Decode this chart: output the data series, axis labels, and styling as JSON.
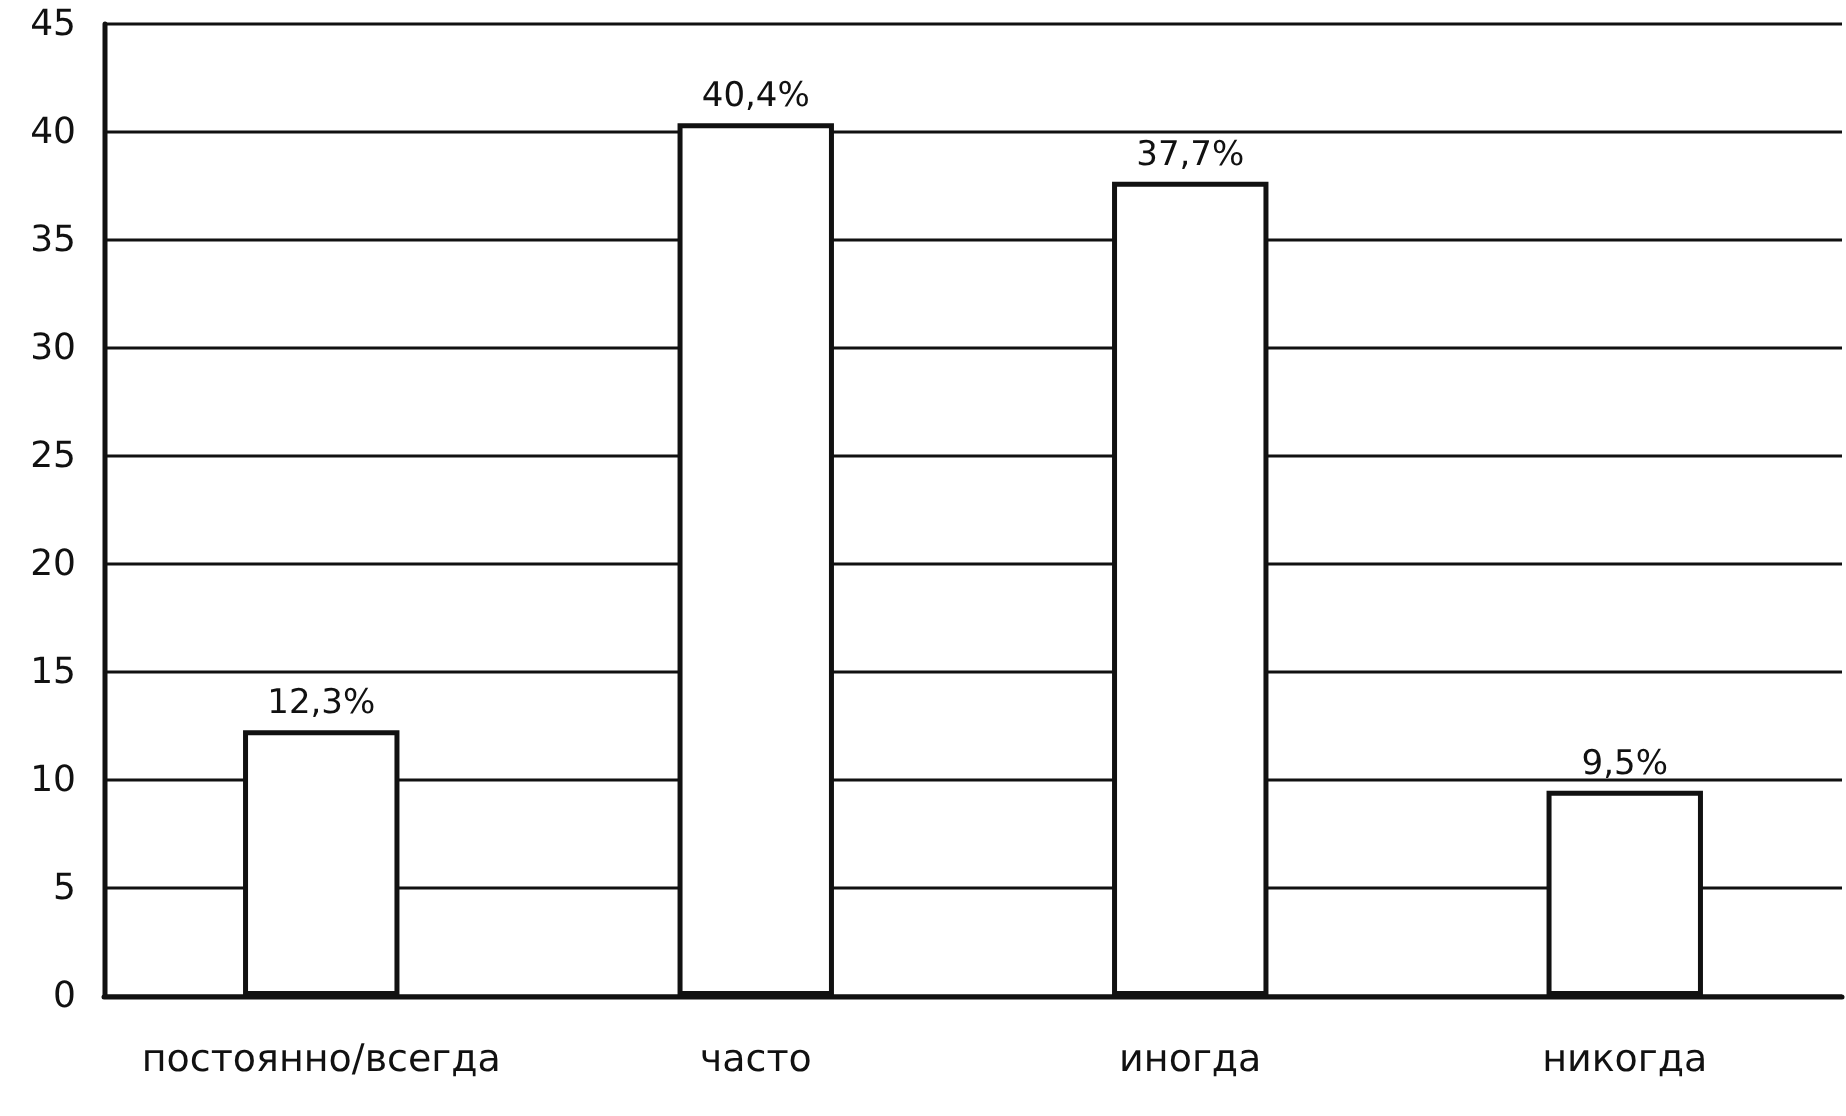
{
  "chart_data": {
    "type": "bar",
    "categories": [
      "постоянно/всегда",
      "часто",
      "иногда",
      "никогда"
    ],
    "values": [
      12.3,
      40.4,
      37.7,
      9.5
    ],
    "value_labels": [
      "12,3%",
      "40,4%",
      "37,7%",
      "9,5%"
    ],
    "color": "#ffffff",
    "ylim": [
      0,
      45
    ],
    "yticks": [
      0,
      5,
      10,
      15,
      20,
      25,
      30,
      35,
      40,
      45
    ],
    "grid": "y"
  }
}
